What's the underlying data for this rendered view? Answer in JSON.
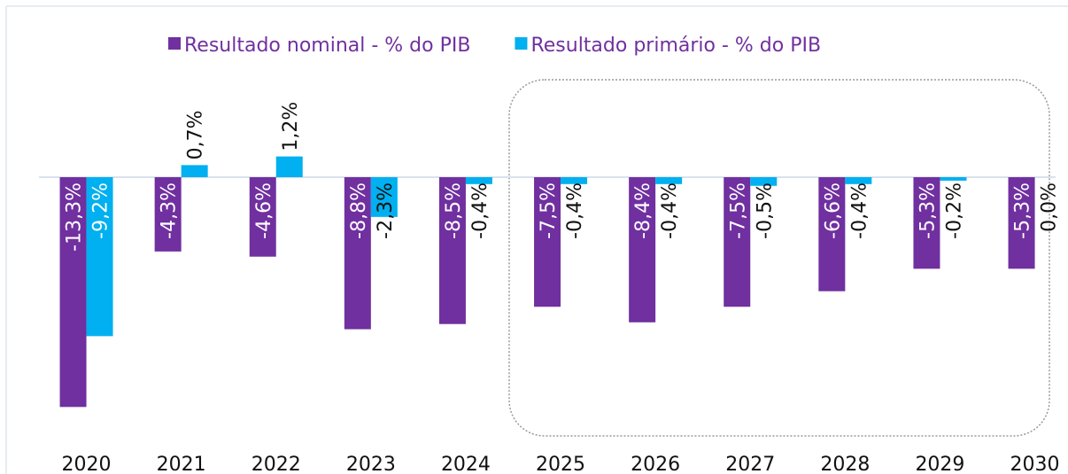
{
  "chart_data": {
    "type": "bar",
    "categories": [
      "2020",
      "2021",
      "2022",
      "2023",
      "2024",
      "2025",
      "2026",
      "2027",
      "2028",
      "2029",
      "2030"
    ],
    "series": [
      {
        "name": "Resultado nominal - % do PIB",
        "color": "#7030a0",
        "values": [
          -13.3,
          -4.3,
          -4.6,
          -8.8,
          -8.5,
          -7.5,
          -8.4,
          -7.5,
          -6.6,
          -5.3,
          -5.3
        ],
        "value_labels": [
          "-13,3%",
          "-4,3%",
          "-4,6%",
          "-8,8%",
          "-8,5%",
          "-7,5%",
          "-8,4%",
          "-7,5%",
          "-6,6%",
          "-5,3%",
          "-5,3%"
        ]
      },
      {
        "name": "Resultado primário - % do PIB",
        "color": "#00b0f0",
        "values": [
          -9.2,
          0.7,
          1.2,
          -2.3,
          -0.4,
          -0.4,
          -0.4,
          -0.5,
          -0.4,
          -0.2,
          0.0
        ],
        "value_labels": [
          "-9,2%",
          "0,7%",
          "1,2%",
          "-2,3%",
          "-0,4%",
          "-0,4%",
          "-0,4%",
          "-0,5%",
          "-0,4%",
          "-0,2%",
          "0,0%"
        ]
      }
    ],
    "ylim": [
      -15,
      5
    ]
  }
}
